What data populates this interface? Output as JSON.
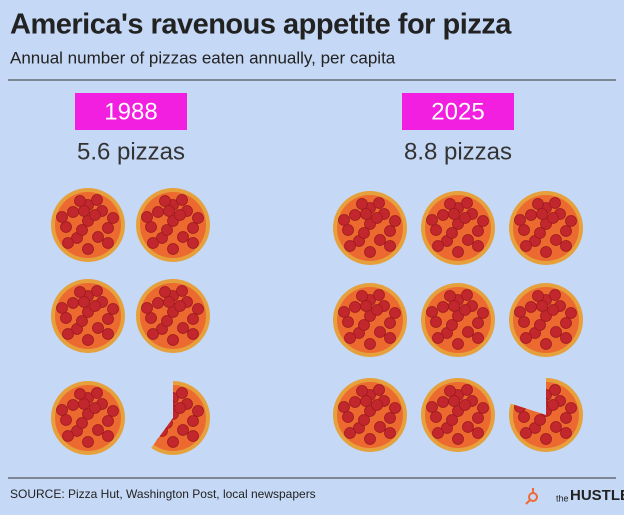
{
  "chart_data": {
    "type": "pictogram",
    "title": "America's ravenous appetite for pizza",
    "subtitle": "Annual number of pizzas eaten annually, per capita",
    "categories": [
      "1988",
      "2025"
    ],
    "values": [
      5.6,
      8.8
    ],
    "value_labels": [
      "5.6 pizzas",
      "8.8 pizzas"
    ],
    "label_color": "#f21ee0",
    "source": "SOURCE: Pizza Hut, Washington Post, local newspapers",
    "logo_small": "the",
    "logo": "HUSTLE"
  }
}
